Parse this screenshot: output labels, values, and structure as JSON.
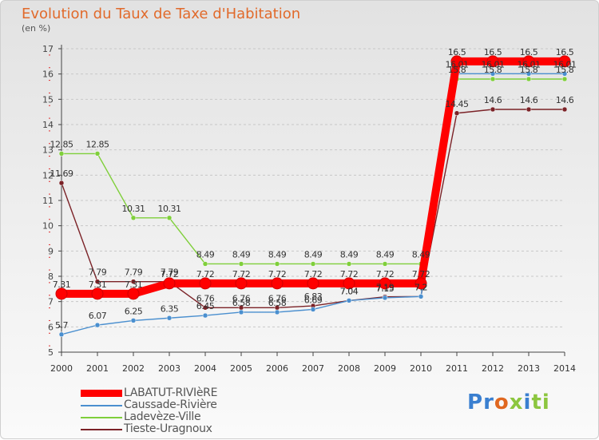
{
  "title": "Evolution du Taux de Taxe d'Habitation",
  "unit_label": "(en %)",
  "logo_text": "Proxiti",
  "chart_data": {
    "type": "line",
    "title": "Evolution du Taux de Taxe d'Habitation",
    "ylabel": "(en %)",
    "xlabel": "",
    "x": [
      "2000",
      "2001",
      "2002",
      "2003",
      "2004",
      "2005",
      "2006",
      "2007",
      "2008",
      "2009",
      "2010",
      "2011",
      "2012",
      "2013",
      "2014"
    ],
    "yticks": [
      5,
      6,
      7,
      8,
      9,
      10,
      11,
      12,
      13,
      14,
      15,
      16,
      17
    ],
    "ylim": [
      5,
      17
    ],
    "grid": "horizontal dashed",
    "legend_position": "bottom-left",
    "series": [
      {
        "name": "LABATUT-RIVIèRE",
        "color": "#ff0000",
        "values": [
          7.31,
          7.31,
          7.31,
          7.72,
          7.72,
          7.72,
          7.72,
          7.72,
          7.72,
          7.72,
          7.72,
          16.5,
          16.5,
          16.5,
          16.5
        ],
        "labels": [
          "7.31",
          "7.31",
          "7.31",
          "7.72",
          "7.72",
          "7.72",
          "7.72",
          "7.72",
          "7.72",
          "7.72",
          "7.72",
          "16.5",
          "16.5",
          "16.5",
          "16.5"
        ]
      },
      {
        "name": "Caussade-Rivière",
        "color": "#4a8fcf",
        "values": [
          5.7,
          6.07,
          6.25,
          6.35,
          6.45,
          6.58,
          6.58,
          6.69,
          7.04,
          7.15,
          7.2,
          16.01,
          16.01,
          16.01,
          16.01
        ],
        "labels": [
          "5.7",
          "6.07",
          "6.25",
          "6.35",
          "6.45",
          "6.58",
          "6.58",
          "6.69",
          "7.04",
          "7.15",
          "7.2",
          "16.01",
          "16.01",
          "16.01",
          "16.01"
        ]
      },
      {
        "name": "Ladevèze-Ville",
        "color": "#7fcf3a",
        "values": [
          12.85,
          12.85,
          10.31,
          10.31,
          8.49,
          8.49,
          8.49,
          8.49,
          8.49,
          8.49,
          8.49,
          15.8,
          15.8,
          15.8,
          15.8
        ],
        "labels": [
          "12.85",
          "12.85",
          "10.31",
          "10.31",
          "8.49",
          "8.49",
          "8.49",
          "8.49",
          "8.49",
          "8.49",
          "8.49",
          "15.8",
          "15.8",
          "15.8",
          "15.8"
        ]
      },
      {
        "name": "Tieste-Uragnoux",
        "color": "#7b2227",
        "values": [
          11.69,
          7.79,
          7.79,
          7.79,
          6.76,
          6.76,
          6.76,
          6.83,
          7.04,
          7.19,
          7.2,
          14.45,
          14.6,
          14.6,
          14.6
        ],
        "labels": [
          "11.69",
          "7.79",
          "7.79",
          "7.79",
          "6.76",
          "6.76",
          "6.76",
          "6.83",
          "7.04",
          "7.19",
          "7.2",
          "14.45",
          "14.6",
          "14.6",
          "14.6"
        ]
      }
    ]
  }
}
